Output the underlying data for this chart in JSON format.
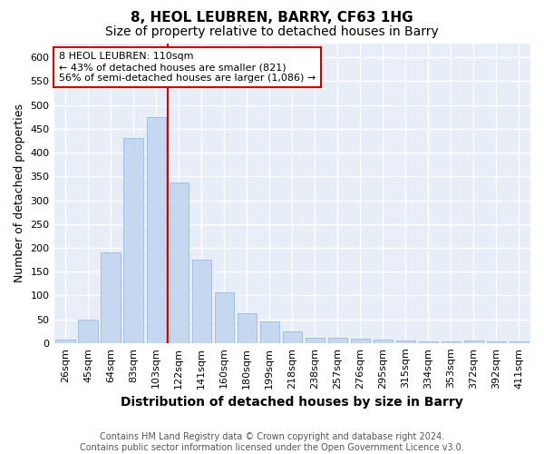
{
  "title": "8, HEOL LEUBREN, BARRY, CF63 1HG",
  "subtitle": "Size of property relative to detached houses in Barry",
  "xlabel": "Distribution of detached houses by size in Barry",
  "ylabel": "Number of detached properties",
  "categories": [
    "26sqm",
    "45sqm",
    "64sqm",
    "83sqm",
    "103sqm",
    "122sqm",
    "141sqm",
    "160sqm",
    "180sqm",
    "199sqm",
    "218sqm",
    "238sqm",
    "257sqm",
    "276sqm",
    "295sqm",
    "315sqm",
    "334sqm",
    "353sqm",
    "372sqm",
    "392sqm",
    "411sqm"
  ],
  "values": [
    7,
    50,
    190,
    430,
    475,
    338,
    175,
    107,
    62,
    45,
    25,
    12,
    12,
    9,
    7,
    5,
    4,
    4,
    5,
    4,
    4
  ],
  "bar_color": "#c5d8f0",
  "bar_edge_color": "#8ab4d8",
  "vline_x_index": 4,
  "vline_color": "#cc0000",
  "annotation_text": "8 HEOL LEUBREN: 110sqm\n← 43% of detached houses are smaller (821)\n56% of semi-detached houses are larger (1,086) →",
  "annotation_box_color": "#ffffff",
  "annotation_box_edge_color": "#cc0000",
  "ylim": [
    0,
    630
  ],
  "yticks": [
    0,
    50,
    100,
    150,
    200,
    250,
    300,
    350,
    400,
    450,
    500,
    550,
    600
  ],
  "figure_bg": "#ffffff",
  "plot_bg": "#e8eef8",
  "grid_color": "#ffffff",
  "title_fontsize": 11,
  "subtitle_fontsize": 10,
  "xlabel_fontsize": 10,
  "ylabel_fontsize": 9,
  "tick_fontsize": 8,
  "annotation_fontsize": 8,
  "footer_fontsize": 7,
  "footer": "Contains HM Land Registry data © Crown copyright and database right 2024.\nContains public sector information licensed under the Open Government Licence v3.0."
}
